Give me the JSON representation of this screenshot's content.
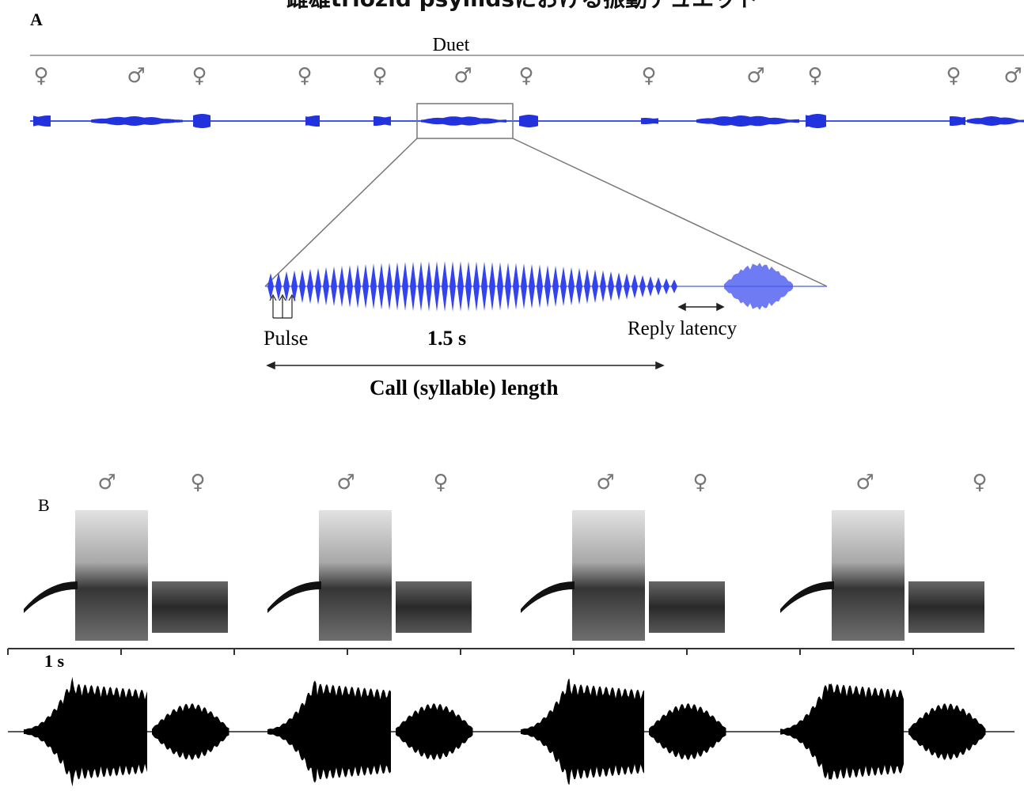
{
  "title": "雌雄triozid psyllidsにおける振動デュエット",
  "panel_a": {
    "label": "A",
    "heading": "Duet",
    "symbols": [
      "♀",
      "♂",
      "♀",
      "♀",
      "♀",
      "♂",
      "♀",
      "♀",
      "♂",
      "♀",
      "♀",
      "♂"
    ],
    "pulse": "Pulse",
    "duration": "1.5 s",
    "reply_latency": "Reply latency",
    "call_length": "Call (syllable) length"
  },
  "panel_b": {
    "label": "B",
    "symbols": [
      "♂",
      "♀",
      "♂",
      "♀",
      "♂",
      "♀",
      "♂",
      "♀"
    ],
    "scale": "1 s"
  }
}
